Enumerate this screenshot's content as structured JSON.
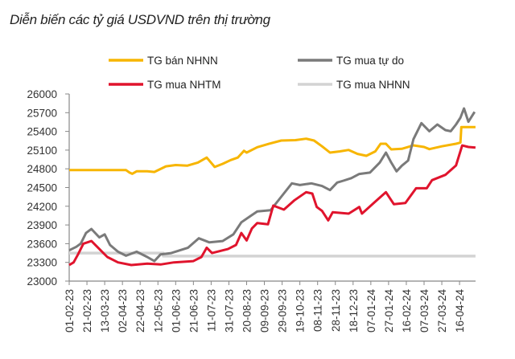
{
  "chart_data": {
    "type": "line",
    "title": "Diễn biến các tỷ giá USDVND trên thị trường",
    "xlabel": "",
    "ylabel": "",
    "ylim": [
      23000,
      26000
    ],
    "yticks": [
      23000,
      23300,
      23600,
      23900,
      24200,
      24500,
      24800,
      25100,
      25400,
      25700,
      26000
    ],
    "x_unit": "days since 01-02-23",
    "xlim": [
      0,
      458
    ],
    "xtick_step_days": 20,
    "xtick_labels": [
      "01-02-23",
      "21-02-23",
      "13-03-23",
      "02-04-23",
      "22-04-23",
      "12-05-23",
      "01-06-23",
      "21-06-23",
      "11-07-23",
      "31-07-23",
      "20-08-23",
      "09-09-23",
      "29-09-23",
      "19-10-23",
      "08-11-23",
      "28-11-23",
      "18-12-23",
      "07-01-24",
      "27-01-24",
      "16-02-24",
      "07-03-24",
      "27-03-24",
      "16-04-24"
    ],
    "grid": false,
    "legend_placement": "top",
    "series": [
      {
        "name": "TG bán NHNN",
        "color": "#f7b500",
        "x": [
          0,
          64,
          68,
          71,
          76,
          88,
          96,
          109,
          120,
          133,
          145,
          155,
          164,
          173,
          182,
          190,
          197,
          200,
          212,
          225,
          239,
          255,
          267,
          276,
          285,
          294,
          305,
          315,
          325,
          335,
          345,
          351,
          357,
          363,
          375,
          388,
          400,
          406,
          420,
          436,
          441,
          442,
          458
        ],
        "y": [
          24780,
          24780,
          24740,
          24720,
          24760,
          24760,
          24750,
          24840,
          24860,
          24850,
          24900,
          24980,
          24830,
          24880,
          24940,
          24980,
          25090,
          25060,
          25146,
          25200,
          25253,
          25260,
          25283,
          25253,
          25160,
          25060,
          25080,
          25103,
          25040,
          25008,
          25080,
          25202,
          25202,
          25112,
          25120,
          25176,
          25150,
          25116,
          25160,
          25202,
          25220,
          25468,
          25468
        ]
      },
      {
        "name": "TG mua tự do",
        "color": "#7a7a7a",
        "x": [
          0,
          8,
          13,
          19,
          25,
          34,
          40,
          46,
          55,
          64,
          76,
          88,
          96,
          103,
          115,
          134,
          146,
          158,
          173,
          185,
          194,
          203,
          212,
          227,
          239,
          251,
          260,
          273,
          285,
          294,
          302,
          309,
          318,
          327,
          339,
          350,
          357,
          363,
          369,
          375,
          382,
          388,
          397,
          406,
          415,
          424,
          430,
          436,
          441,
          445,
          450,
          457
        ],
        "y": [
          23493,
          23550,
          23600,
          23771,
          23836,
          23700,
          23750,
          23579,
          23471,
          23407,
          23471,
          23386,
          23321,
          23429,
          23450,
          23536,
          23686,
          23621,
          23643,
          23750,
          23943,
          24030,
          24116,
          24137,
          24352,
          24567,
          24540,
          24567,
          24524,
          24459,
          24580,
          24610,
          24650,
          24717,
          24739,
          24900,
          25060,
          24900,
          24760,
          24850,
          24932,
          25275,
          25532,
          25403,
          25511,
          25420,
          25403,
          25511,
          25620,
          25768,
          25554,
          25713
        ]
      },
      {
        "name": "TG mua NHTM",
        "color": "#e0142d",
        "x": [
          0,
          5,
          10,
          16,
          25,
          34,
          43,
          55,
          70,
          88,
          103,
          118,
          140,
          149,
          155,
          161,
          179,
          188,
          194,
          200,
          206,
          212,
          224,
          230,
          242,
          254,
          267,
          274,
          279,
          285,
          292,
          297,
          315,
          327,
          330,
          345,
          357,
          366,
          379,
          391,
          403,
          409,
          424,
          436,
          443,
          450,
          458
        ],
        "y": [
          23257,
          23300,
          23429,
          23600,
          23643,
          23514,
          23386,
          23300,
          23257,
          23279,
          23266,
          23300,
          23321,
          23386,
          23536,
          23450,
          23514,
          23579,
          23771,
          23652,
          23845,
          23931,
          23910,
          24210,
          24146,
          24296,
          24425,
          24403,
          24189,
          24125,
          23974,
          24103,
          24082,
          24189,
          24082,
          24275,
          24425,
          24232,
          24253,
          24489,
          24489,
          24618,
          24704,
          24854,
          25175,
          25150,
          25140
        ]
      },
      {
        "name": "TG mua NHNN",
        "color": "#d3d3d3",
        "x": [
          0,
          106,
          106,
          458
        ],
        "y": [
          23450,
          23450,
          23400,
          23400
        ]
      }
    ]
  }
}
